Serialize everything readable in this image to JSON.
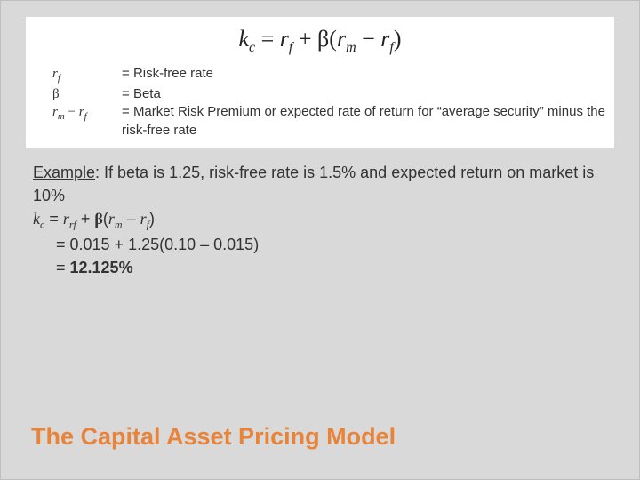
{
  "colors": {
    "slide_bg": "#d9d9d9",
    "box_bg": "#ffffff",
    "title_color": "#e8833a",
    "text_color": "#333333"
  },
  "formula": {
    "kc": "k",
    "kc_sub": "c",
    "eq": " = ",
    "rf": "r",
    "rf_sub": "f",
    "plus": " + ",
    "beta": "β",
    "open": "(",
    "rm": "r",
    "rm_sub": "m",
    "minus": " − ",
    "rf2": "r",
    "rf2_sub": "f",
    "close": ")"
  },
  "defs": {
    "d1_sym_r": "r",
    "d1_sym_sub": "f",
    "d1_eq": " = ",
    "d1_txt": "Risk-free rate",
    "d2_sym": "β",
    "d2_eq": " = ",
    "d2_txt": "Beta",
    "d3_sym_r1": "r",
    "d3_sym_sub1": "m",
    "d3_minus": " − ",
    "d3_sym_r2": "r",
    "d3_sym_sub2": "f",
    "d3_eq": " = ",
    "d3_txt": "Market Risk Premium or expected rate of return for “average security” minus the risk-free rate"
  },
  "example": {
    "label": "Example",
    "intro": ": If beta is 1.25, risk-free rate is 1.5% and expected return on market is 10%",
    "f_kc": "k",
    "f_kc_sub": "c",
    "f_eq": " = ",
    "f_rrf": "r",
    "f_rrf_sub": "rf",
    "f_plus": " + ",
    "f_beta": "β",
    "f_open": "(",
    "f_rm": "r",
    "f_rm_sub": "m",
    "f_minus": " – ",
    "f_rf": "r",
    "f_rf_sub": "f",
    "f_close": ")",
    "line2": "= 0.015 + 1.25(0.10 – 0.015)",
    "line3a": "= ",
    "line3b": "12.125%"
  },
  "title": "The Capital Asset Pricing Model"
}
